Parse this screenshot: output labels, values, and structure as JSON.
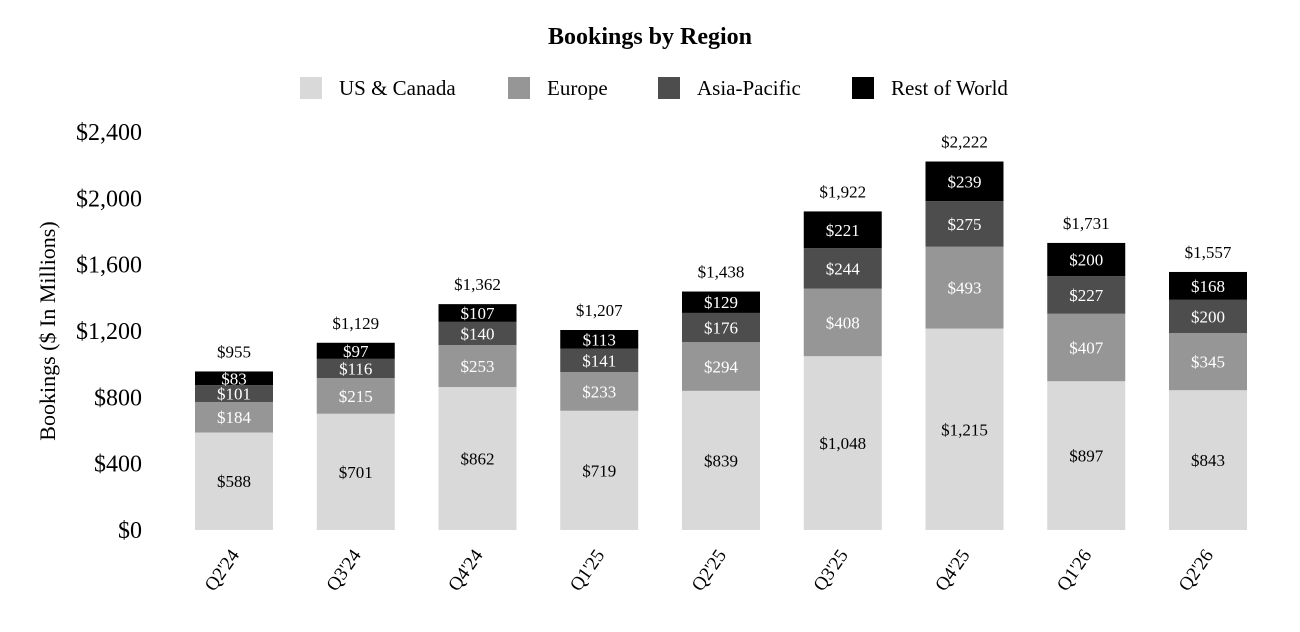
{
  "chart_data": {
    "type": "bar",
    "stacked": true,
    "title": "Bookings by Region",
    "ylabel": "Bookings ($ In Millions)",
    "xlabel": "",
    "ylim": [
      0,
      2400
    ],
    "yticks": [
      0,
      400,
      800,
      1200,
      1600,
      2000,
      2400
    ],
    "ytick_labels": [
      "$0",
      "$400",
      "$800",
      "$1,200",
      "$1,600",
      "$2,000",
      "$2,400"
    ],
    "categories": [
      "Q2'24",
      "Q3'24",
      "Q4'24",
      "Q1'25",
      "Q2'25",
      "Q3'25",
      "Q4'25",
      "Q1'26",
      "Q2'26"
    ],
    "series": [
      {
        "name": "US & Canada",
        "color": "#d9d9d9",
        "label_color": "#000000",
        "values": [
          588,
          701,
          862,
          719,
          839,
          1048,
          1215,
          897,
          843
        ],
        "labels": [
          "$588",
          "$701",
          "$862",
          "$719",
          "$839",
          "$1,048",
          "$1,215",
          "$897",
          "$843"
        ]
      },
      {
        "name": "Europe",
        "color": "#969696",
        "label_color": "#ffffff",
        "values": [
          184,
          215,
          253,
          233,
          294,
          408,
          493,
          407,
          345
        ],
        "labels": [
          "$184",
          "$215",
          "$253",
          "$233",
          "$294",
          "$408",
          "$493",
          "$407",
          "$345"
        ]
      },
      {
        "name": "Asia-Pacific",
        "color": "#4d4d4d",
        "label_color": "#ffffff",
        "values": [
          101,
          116,
          140,
          141,
          176,
          244,
          275,
          227,
          200
        ],
        "labels": [
          "$101",
          "$116",
          "$140",
          "$141",
          "$176",
          "$244",
          "$275",
          "$227",
          "$200"
        ]
      },
      {
        "name": "Rest of World",
        "color": "#000000",
        "label_color": "#ffffff",
        "values": [
          83,
          97,
          107,
          113,
          129,
          221,
          239,
          200,
          168
        ],
        "labels": [
          "$83",
          "$97",
          "$107",
          "$113",
          "$129",
          "$221",
          "$239",
          "$200",
          "$168"
        ]
      }
    ],
    "totals": [
      955,
      1129,
      1362,
      1207,
      1438,
      1922,
      2222,
      1731,
      1557
    ],
    "total_labels": [
      "$955",
      "$1,129",
      "$1,362",
      "$1,207",
      "$1,438",
      "$1,922",
      "$2,222",
      "$1,731",
      "$1,557"
    ],
    "legend_position": "top",
    "grid": false
  }
}
